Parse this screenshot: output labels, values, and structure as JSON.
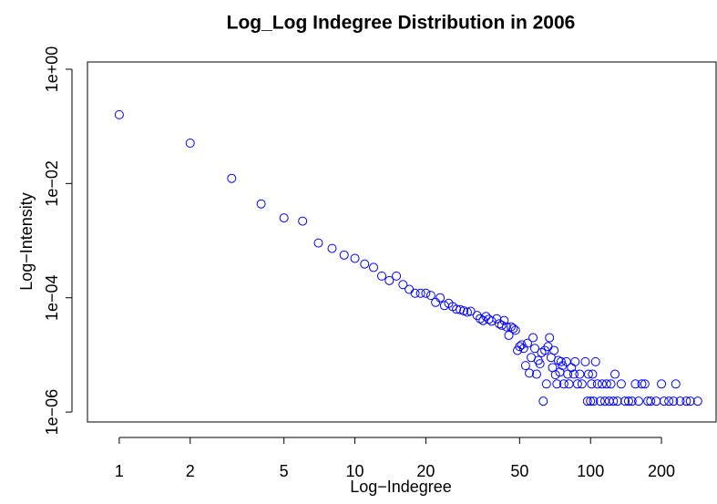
{
  "chart_data": {
    "type": "scatter",
    "title": "Log_Log Indegree Distribution in 2006",
    "x_label": "Log−Indegree",
    "y_label": "Log−Intensity",
    "log_x": true,
    "log_y": true,
    "color": "#0000ff",
    "xlim": [
      0.733,
      341
    ],
    "ylim": [
      6.7e-07,
      1.34
    ],
    "xticks": [
      1,
      2,
      5,
      10,
      20,
      50,
      100,
      200
    ],
    "yticks": [
      {
        "value": 1e-06,
        "label": "1e−06"
      },
      {
        "value": 0.0001,
        "label": "1e−04"
      },
      {
        "value": 0.01,
        "label": "1e−02"
      },
      {
        "value": 1,
        "label": "1e+00"
      }
    ],
    "x": [
      1,
      2,
      3,
      4,
      5,
      6,
      7,
      8,
      9,
      10,
      11,
      12,
      13,
      14,
      15,
      16,
      17,
      18,
      19,
      20,
      21,
      22,
      23,
      24,
      25,
      26,
      27,
      28,
      29,
      30,
      31,
      33,
      34,
      35,
      36,
      37,
      38,
      40,
      41,
      42,
      43,
      44,
      45,
      46,
      47,
      48,
      49,
      50,
      51,
      52,
      53,
      54,
      55,
      56,
      57,
      58,
      59,
      60,
      61,
      62,
      63,
      64,
      65,
      66,
      67,
      68,
      69,
      70,
      71,
      72,
      73,
      74,
      75,
      76,
      77,
      79,
      80,
      81,
      83,
      85,
      86,
      88,
      90,
      92,
      95,
      97,
      98,
      100,
      101,
      102,
      103,
      105,
      107,
      110,
      112,
      115,
      117,
      120,
      122,
      125,
      127,
      130,
      135,
      140,
      145,
      150,
      155,
      160,
      165,
      170,
      175,
      180,
      190,
      200,
      205,
      215,
      225,
      230,
      240,
      255,
      265,
      285
    ],
    "values": [
      0.16,
      0.051,
      0.0123,
      0.0044,
      0.0025,
      0.0022,
      0.00091,
      0.00073,
      0.00056,
      0.00049,
      0.00039,
      0.00034,
      0.00024,
      0.0002,
      0.00024,
      0.00017,
      0.00014,
      0.00012,
      0.00012,
      0.00012,
      0.00011,
      8.3e-05,
      0.0001,
      7.3e-05,
      8e-05,
      7e-05,
      6.3e-05,
      6.2e-05,
      5.9e-05,
      5.6e-05,
      5.8e-05,
      4.9e-05,
      4.3e-05,
      4e-05,
      4.7e-05,
      4.2e-05,
      3.9e-05,
      4.3e-05,
      3.5e-05,
      3.3e-05,
      4e-05,
      3.1e-05,
      2.2e-05,
      3.1e-05,
      2.9e-05,
      2.7e-05,
      1.2e-05,
      1.4e-05,
      1.5e-05,
      1.3e-05,
      6.5e-06,
      1.6e-05,
      4.8e-06,
      9e-06,
      2e-05,
      1.3e-05,
      4.6e-06,
      8e-06,
      7e-06,
      1.1e-05,
      1.55e-06,
      1.2e-05,
      3.1e-06,
      1.4e-05,
      2e-05,
      9e-06,
      6e-06,
      1.2e-05,
      4.5e-06,
      3.1e-06,
      8e-06,
      5e-06,
      7.6e-06,
      6.5e-06,
      3.1e-06,
      7.6e-06,
      4.6e-06,
      3.1e-06,
      6e-06,
      4.6e-06,
      7.6e-06,
      3.1e-06,
      4.6e-06,
      3.1e-06,
      7.6e-06,
      1.55e-06,
      4.6e-06,
      1.55e-06,
      3.1e-06,
      4.6e-06,
      1.55e-06,
      7.6e-06,
      3.1e-06,
      1.55e-06,
      3.1e-06,
      1.55e-06,
      3.1e-06,
      1.55e-06,
      3.1e-06,
      1.55e-06,
      4.6e-06,
      1.55e-06,
      3.1e-06,
      1.55e-06,
      1.55e-06,
      1.55e-06,
      3.1e-06,
      1.55e-06,
      3.1e-06,
      3.1e-06,
      1.55e-06,
      1.55e-06,
      1.55e-06,
      3.1e-06,
      1.55e-06,
      1.55e-06,
      1.55e-06,
      3.1e-06,
      1.55e-06,
      1.55e-06,
      1.55e-06,
      1.55e-06
    ]
  }
}
